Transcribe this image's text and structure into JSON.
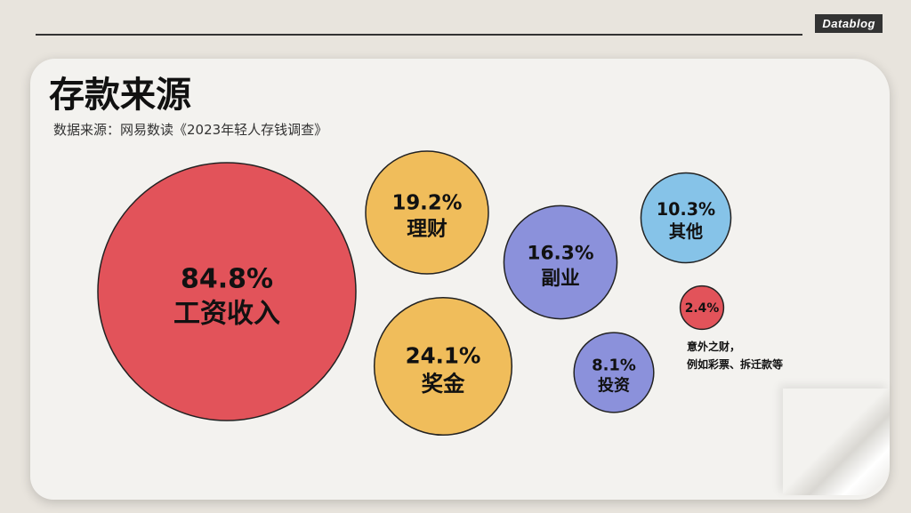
{
  "brand": "Datablog",
  "title": "存款来源",
  "subtitle": "数据来源：网易数读《2023年轻人存钱调查》",
  "note": {
    "line1": "意外之财，",
    "line2": "例如彩票、拆迁款等"
  },
  "chart_data": {
    "type": "bubble",
    "unit": "%",
    "items": [
      {
        "label": "工资收入",
        "value": 84.8,
        "value_text": "84.8%",
        "color": "#e2535a"
      },
      {
        "label": "理财",
        "value": 19.2,
        "value_text": "19.2%",
        "color": "#f0bd5b"
      },
      {
        "label": "奖金",
        "value": 24.1,
        "value_text": "24.1%",
        "color": "#f0bd5b"
      },
      {
        "label": "副业",
        "value": 16.3,
        "value_text": "16.3%",
        "color": "#8b91db"
      },
      {
        "label": "投资",
        "value": 8.1,
        "value_text": "8.1%",
        "color": "#8b91db"
      },
      {
        "label": "其他",
        "value": 10.3,
        "value_text": "10.3%",
        "color": "#86c3e8"
      },
      {
        "label": "",
        "value": 2.4,
        "value_text": "2.4%",
        "color": "#e2535a"
      }
    ]
  }
}
